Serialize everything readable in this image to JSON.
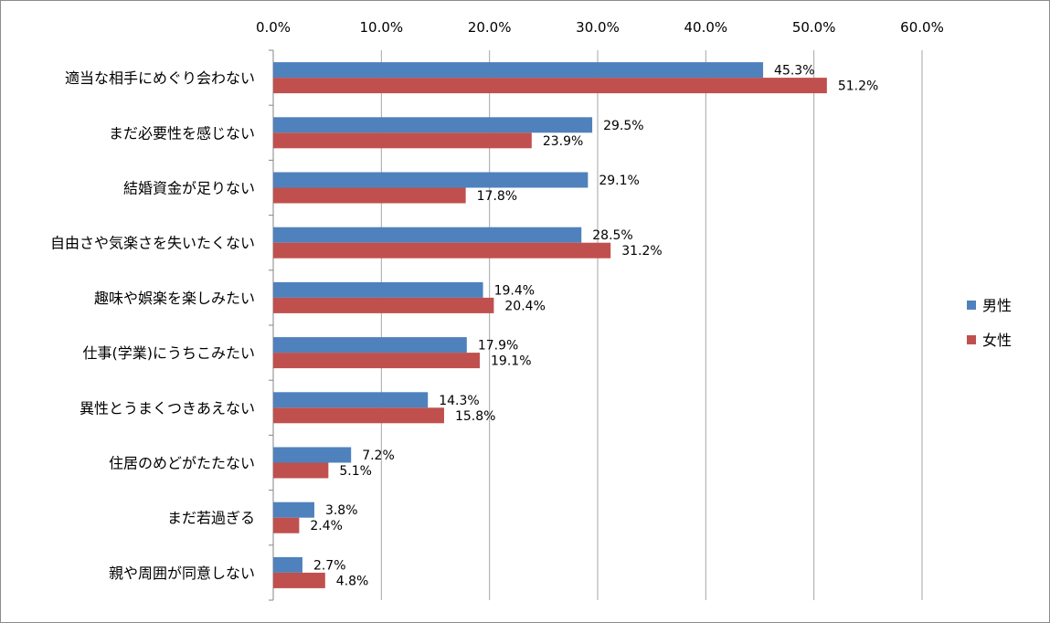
{
  "chart_data": {
    "type": "bar",
    "orientation": "horizontal",
    "title": "",
    "xlabel": "",
    "ylabel": "",
    "xlim": [
      0,
      60
    ],
    "x_tick_values": [
      0,
      10,
      20,
      30,
      40,
      50,
      60
    ],
    "x_tick_labels": [
      "0.0%",
      "10.0%",
      "20.0%",
      "30.0%",
      "40.0%",
      "50.0%",
      "60.0%"
    ],
    "grid": true,
    "legend_position": "right",
    "categories": [
      "適当な相手にめぐり会わない",
      "まだ必要性を感じない",
      "結婚資金が足りない",
      "自由さや気楽さを失いたくない",
      "趣味や娯楽を楽しみたい",
      "仕事(学業)にうちこみたい",
      "異性とうまくつきあえない",
      "住居のめどがたたない",
      "まだ若過ぎる",
      "親や周囲が同意しない"
    ],
    "series": [
      {
        "name": "男性",
        "color": "#4f81bd",
        "values": [
          45.3,
          29.5,
          29.1,
          28.5,
          19.4,
          17.9,
          14.3,
          7.2,
          3.8,
          2.7
        ],
        "labels": [
          "45.3%",
          "29.5%",
          "29.1%",
          "28.5%",
          "19.4%",
          "17.9%",
          "14.3%",
          "7.2%",
          "3.8%",
          "2.7%"
        ]
      },
      {
        "name": "女性",
        "color": "#c0504d",
        "values": [
          51.2,
          23.9,
          17.8,
          31.2,
          20.4,
          19.1,
          15.8,
          5.1,
          2.4,
          4.8
        ],
        "labels": [
          "51.2%",
          "23.9%",
          "17.8%",
          "31.2%",
          "20.4%",
          "19.1%",
          "15.8%",
          "5.1%",
          "2.4%",
          "4.8%"
        ]
      }
    ]
  }
}
